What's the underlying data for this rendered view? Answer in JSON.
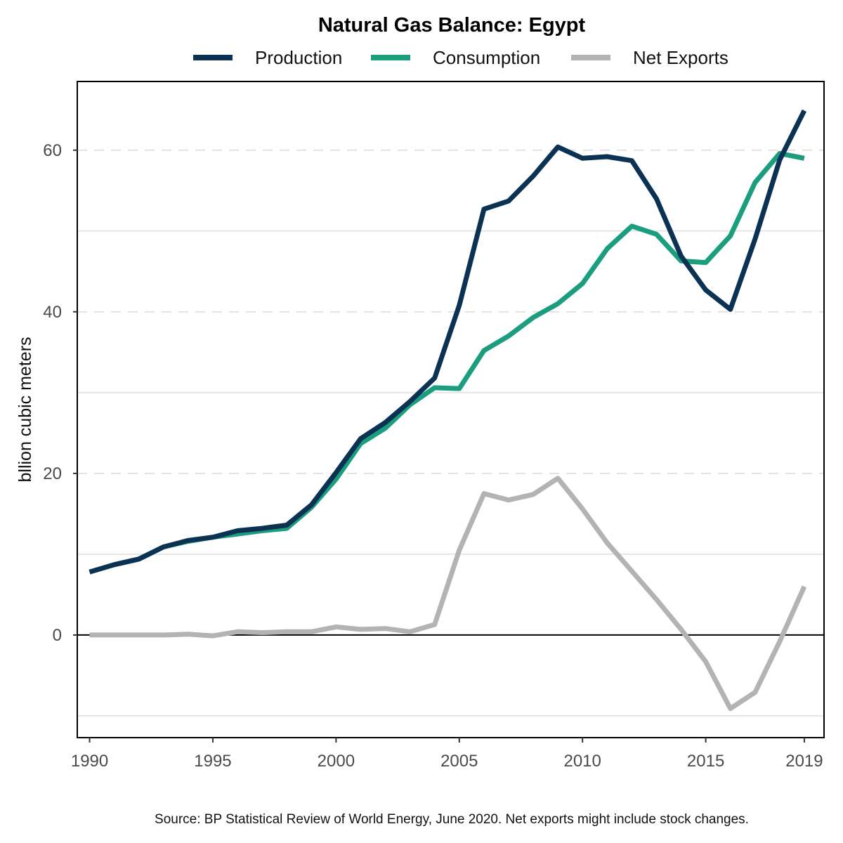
{
  "chart_data": {
    "type": "line",
    "title": "Natural Gas Balance: Egypt",
    "ylabel": "bllion cubic meters",
    "xlabel": "",
    "caption": "Source: BP Statistical Review of World Energy, June 2020. Net exports might include stock changes.",
    "x": [
      1990,
      1991,
      1992,
      1993,
      1994,
      1995,
      1996,
      1997,
      1998,
      1999,
      2000,
      2001,
      2002,
      2003,
      2004,
      2005,
      2006,
      2007,
      2008,
      2009,
      2010,
      2011,
      2012,
      2013,
      2014,
      2015,
      2016,
      2017,
      2018,
      2019
    ],
    "xlim": [
      1989.5,
      2019.8
    ],
    "ylim": [
      -12.7,
      68.5
    ],
    "x_ticks": [
      1990,
      1995,
      2000,
      2005,
      2010,
      2015,
      2019
    ],
    "x_tick_labels": [
      "1990",
      "1995",
      "2000",
      "2005",
      "2010",
      "2015",
      "2019"
    ],
    "y_ticks": [
      0,
      20,
      40,
      60
    ],
    "y_tick_labels": [
      "0",
      "20",
      "40",
      "60"
    ],
    "y_minor_gridlines": [
      -10,
      10,
      30,
      50
    ],
    "zero_line": true,
    "legend_position": "top",
    "series": [
      {
        "name": "Production",
        "color": "#0b3153",
        "values": [
          7.8,
          8.7,
          9.4,
          10.9,
          11.7,
          12.1,
          12.9,
          13.2,
          13.6,
          16.1,
          20.1,
          24.3,
          26.3,
          28.9,
          31.8,
          40.8,
          52.7,
          53.7,
          56.8,
          60.4,
          59.0,
          59.2,
          58.7,
          54.0,
          46.9,
          42.7,
          40.3,
          49.0,
          58.8,
          64.9
        ]
      },
      {
        "name": "Consumption",
        "color": "#1b9e7e",
        "values": [
          7.8,
          8.7,
          9.4,
          10.9,
          11.6,
          12.1,
          12.5,
          12.9,
          13.2,
          15.8,
          19.3,
          23.7,
          25.6,
          28.5,
          30.6,
          30.5,
          35.2,
          37.0,
          39.3,
          41.0,
          43.5,
          47.8,
          50.6,
          49.6,
          46.3,
          46.1,
          49.4,
          56.0,
          59.6,
          59.0
        ]
      },
      {
        "name": "Net Exports",
        "color": "#b3b3b3",
        "values": [
          0.0,
          0.0,
          0.0,
          0.0,
          0.1,
          -0.1,
          0.4,
          0.3,
          0.4,
          0.4,
          1.0,
          0.7,
          0.8,
          0.4,
          1.3,
          10.5,
          17.5,
          16.7,
          17.4,
          19.4,
          15.6,
          11.4,
          7.9,
          4.4,
          0.7,
          -3.3,
          -9.1,
          -7.1,
          -0.8,
          6.0
        ]
      }
    ]
  }
}
